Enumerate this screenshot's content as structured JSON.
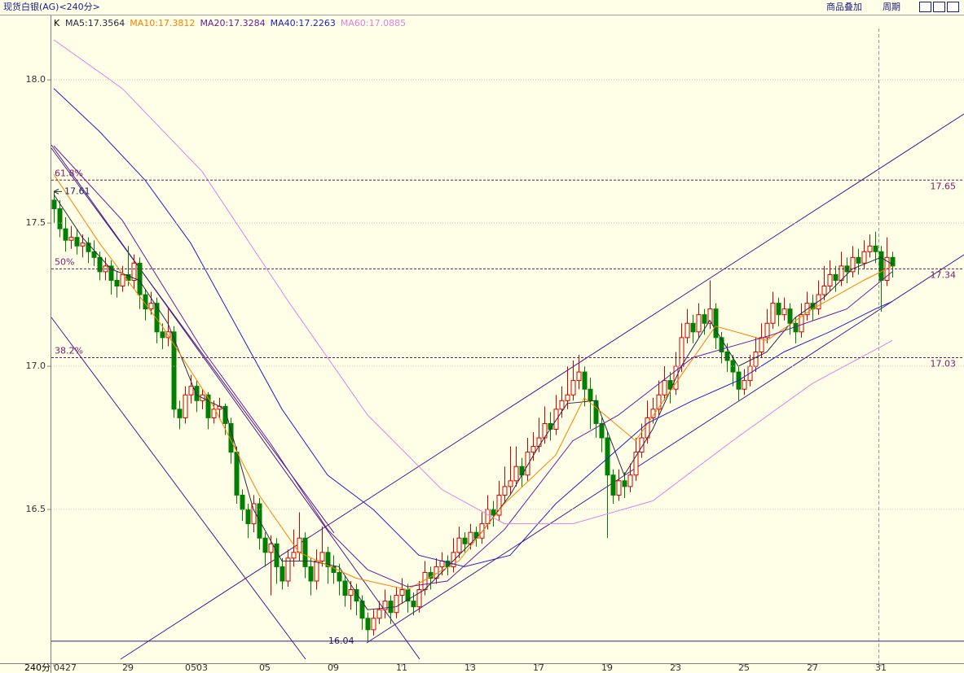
{
  "chart_data": {
    "type": "candlestick",
    "title": "现货白银(AG)<240分>",
    "toolbar": [
      "商品叠加",
      "周期"
    ],
    "legend_prefix": "K",
    "period_label": "240分",
    "up_color": "#d00000",
    "down_color": "#008000",
    "ylim": [
      15.963,
      18.222
    ],
    "yticks": [
      {
        "value": 18,
        "label": "18.0"
      },
      {
        "value": 17.5,
        "label": "17.5"
      },
      {
        "value": 17,
        "label": "17.0"
      },
      {
        "value": 16.5,
        "label": "16.5"
      }
    ],
    "grid": true,
    "xlim": [
      -0.43,
      159.57
    ],
    "xticks": [
      {
        "value": 0,
        "label": "0427"
      },
      {
        "value": 13,
        "label": "29"
      },
      {
        "value": 25,
        "label": "0503"
      },
      {
        "value": 37,
        "label": "05"
      },
      {
        "value": 49,
        "label": "09"
      },
      {
        "value": 61,
        "label": "11"
      },
      {
        "value": 73,
        "label": "13"
      },
      {
        "value": 85,
        "label": "17"
      },
      {
        "value": 97,
        "label": "19"
      },
      {
        "value": 109,
        "label": "23"
      },
      {
        "value": 121,
        "label": "25"
      },
      {
        "value": 133,
        "label": "27"
      },
      {
        "value": 145,
        "label": "31"
      }
    ],
    "levels": [
      {
        "value": 17.65,
        "label": "61.8%"
      },
      {
        "value": 17.34,
        "label": "50%"
      },
      {
        "value": 17.03,
        "label": "38.2%"
      }
    ],
    "high_mark": 17.61,
    "low_mark": 16.04,
    "ohlc": [
      [
        17.58,
        17.61,
        17.5,
        17.55
      ],
      [
        17.55,
        17.58,
        17.45,
        17.48
      ],
      [
        17.48,
        17.52,
        17.4,
        17.44
      ],
      [
        17.44,
        17.49,
        17.41,
        17.45
      ],
      [
        17.45,
        17.48,
        17.39,
        17.42
      ],
      [
        17.42,
        17.46,
        17.38,
        17.43
      ],
      [
        17.43,
        17.45,
        17.36,
        17.4
      ],
      [
        17.4,
        17.44,
        17.35,
        17.38
      ],
      [
        17.38,
        17.4,
        17.3,
        17.33
      ],
      [
        17.33,
        17.38,
        17.3,
        17.35
      ],
      [
        17.35,
        17.37,
        17.25,
        17.3
      ],
      [
        17.3,
        17.33,
        17.24,
        17.28
      ],
      [
        17.28,
        17.35,
        17.26,
        17.32
      ],
      [
        17.32,
        17.42,
        17.28,
        17.3
      ],
      [
        17.3,
        17.39,
        17.27,
        17.36
      ],
      [
        17.36,
        17.38,
        17.2,
        17.25
      ],
      [
        17.25,
        17.27,
        17.16,
        17.2
      ],
      [
        17.2,
        17.26,
        17.18,
        17.22
      ],
      [
        17.22,
        17.24,
        17.08,
        17.12
      ],
      [
        17.12,
        17.15,
        17.06,
        17.1
      ],
      [
        17.1,
        17.2,
        17.07,
        17.12
      ],
      [
        17.12,
        17.14,
        16.82,
        16.85
      ],
      [
        16.85,
        16.88,
        16.78,
        16.82
      ],
      [
        16.82,
        16.93,
        16.8,
        16.9
      ],
      [
        16.9,
        16.97,
        16.87,
        16.93
      ],
      [
        16.93,
        16.95,
        16.84,
        16.88
      ],
      [
        16.88,
        16.92,
        16.85,
        16.9
      ],
      [
        16.9,
        16.91,
        16.78,
        16.82
      ],
      [
        16.82,
        16.88,
        16.8,
        16.85
      ],
      [
        16.85,
        16.89,
        16.82,
        16.86
      ],
      [
        16.86,
        16.87,
        16.76,
        16.8
      ],
      [
        16.8,
        16.82,
        16.66,
        16.7
      ],
      [
        16.7,
        16.72,
        16.52,
        16.55
      ],
      [
        16.55,
        16.57,
        16.46,
        16.5
      ],
      [
        16.5,
        16.52,
        16.4,
        16.45
      ],
      [
        16.45,
        16.55,
        16.42,
        16.52
      ],
      [
        16.52,
        16.54,
        16.36,
        16.4
      ],
      [
        16.4,
        16.42,
        16.3,
        16.35
      ],
      [
        16.35,
        16.41,
        16.2,
        16.38
      ],
      [
        16.38,
        16.4,
        16.24,
        16.3
      ],
      [
        16.3,
        16.33,
        16.22,
        16.25
      ],
      [
        16.25,
        16.36,
        16.23,
        16.33
      ],
      [
        16.33,
        16.43,
        16.3,
        16.35
      ],
      [
        16.35,
        16.49,
        16.32,
        16.4
      ],
      [
        16.4,
        16.42,
        16.26,
        16.3
      ],
      [
        16.3,
        16.33,
        16.2,
        16.25
      ],
      [
        16.25,
        16.36,
        16.22,
        16.32
      ],
      [
        16.32,
        16.44,
        16.3,
        16.35
      ],
      [
        16.35,
        16.37,
        16.24,
        16.3
      ],
      [
        16.3,
        16.34,
        16.24,
        16.28
      ],
      [
        16.28,
        16.31,
        16.2,
        16.25
      ],
      [
        16.25,
        16.27,
        16.16,
        16.2
      ],
      [
        16.2,
        16.25,
        16.15,
        16.22
      ],
      [
        16.22,
        16.24,
        16.13,
        16.18
      ],
      [
        16.18,
        16.2,
        16.08,
        16.12
      ],
      [
        16.12,
        16.14,
        16.04,
        16.08
      ],
      [
        16.08,
        16.15,
        16.06,
        16.12
      ],
      [
        16.12,
        16.18,
        16.1,
        16.15
      ],
      [
        16.15,
        16.22,
        16.12,
        16.18
      ],
      [
        16.18,
        16.2,
        16.1,
        16.14
      ],
      [
        16.14,
        16.23,
        16.12,
        16.2
      ],
      [
        16.2,
        16.26,
        16.17,
        16.22
      ],
      [
        16.22,
        16.24,
        16.14,
        16.18
      ],
      [
        16.18,
        16.21,
        16.13,
        16.16
      ],
      [
        16.16,
        16.25,
        16.14,
        16.22
      ],
      [
        16.22,
        16.32,
        16.2,
        16.28
      ],
      [
        16.28,
        16.3,
        16.22,
        16.26
      ],
      [
        16.26,
        16.33,
        16.24,
        16.3
      ],
      [
        16.3,
        16.35,
        16.27,
        16.32
      ],
      [
        16.32,
        16.34,
        16.27,
        16.3
      ],
      [
        16.3,
        16.4,
        16.28,
        16.35
      ],
      [
        16.35,
        16.44,
        16.33,
        16.4
      ],
      [
        16.4,
        16.42,
        16.35,
        16.38
      ],
      [
        16.38,
        16.45,
        16.36,
        16.42
      ],
      [
        16.42,
        16.44,
        16.37,
        16.4
      ],
      [
        16.4,
        16.49,
        16.38,
        16.45
      ],
      [
        16.45,
        16.55,
        16.43,
        16.5
      ],
      [
        16.5,
        16.53,
        16.44,
        16.48
      ],
      [
        16.48,
        16.6,
        16.46,
        16.55
      ],
      [
        16.55,
        16.65,
        16.52,
        16.58
      ],
      [
        16.58,
        16.72,
        16.55,
        16.6
      ],
      [
        16.6,
        16.72,
        16.58,
        16.65
      ],
      [
        16.65,
        16.68,
        16.58,
        16.62
      ],
      [
        16.62,
        16.75,
        16.6,
        16.7
      ],
      [
        16.7,
        16.77,
        16.67,
        16.72
      ],
      [
        16.72,
        16.82,
        16.7,
        16.75
      ],
      [
        16.75,
        16.86,
        16.73,
        16.8
      ],
      [
        16.8,
        16.84,
        16.74,
        16.78
      ],
      [
        16.78,
        16.9,
        16.76,
        16.85
      ],
      [
        16.85,
        16.93,
        16.82,
        16.88
      ],
      [
        16.88,
        17.0,
        16.85,
        16.9
      ],
      [
        16.9,
        17.02,
        16.88,
        16.95
      ],
      [
        16.95,
        17.04,
        16.92,
        16.98
      ],
      [
        16.98,
        17.0,
        16.86,
        16.92
      ],
      [
        16.92,
        16.96,
        16.78,
        16.88
      ],
      [
        16.88,
        16.9,
        16.75,
        16.8
      ],
      [
        16.8,
        16.82,
        16.7,
        16.75
      ],
      [
        16.75,
        16.77,
        16.4,
        16.62
      ],
      [
        16.62,
        16.64,
        16.52,
        16.55
      ],
      [
        16.55,
        16.64,
        16.53,
        16.6
      ],
      [
        16.6,
        16.63,
        16.54,
        16.58
      ],
      [
        16.58,
        16.66,
        16.56,
        16.62
      ],
      [
        16.62,
        16.75,
        16.6,
        16.7
      ],
      [
        16.7,
        16.8,
        16.68,
        16.75
      ],
      [
        16.75,
        16.88,
        16.73,
        16.82
      ],
      [
        16.82,
        16.89,
        16.8,
        16.85
      ],
      [
        16.85,
        16.95,
        16.83,
        16.9
      ],
      [
        16.9,
        17.0,
        16.88,
        16.95
      ],
      [
        16.95,
        16.98,
        16.87,
        16.92
      ],
      [
        16.92,
        17.05,
        16.9,
        17.0
      ],
      [
        17.0,
        17.15,
        16.98,
        17.1
      ],
      [
        17.1,
        17.2,
        17.08,
        17.15
      ],
      [
        17.15,
        17.18,
        17.08,
        17.12
      ],
      [
        17.12,
        17.22,
        17.1,
        17.18
      ],
      [
        17.18,
        17.2,
        17.11,
        17.15
      ],
      [
        17.15,
        17.3,
        17.13,
        17.2
      ],
      [
        17.2,
        17.22,
        17.06,
        17.1
      ],
      [
        17.1,
        17.12,
        17.01,
        17.05
      ],
      [
        17.05,
        17.08,
        16.98,
        17.02
      ],
      [
        17.02,
        17.04,
        16.93,
        16.98
      ],
      [
        16.98,
        17.0,
        16.88,
        16.92
      ],
      [
        16.92,
        16.99,
        16.9,
        16.95
      ],
      [
        16.95,
        17.04,
        16.93,
        17.0
      ],
      [
        17.0,
        17.1,
        16.98,
        17.05
      ],
      [
        17.05,
        17.15,
        17.03,
        17.1
      ],
      [
        17.1,
        17.2,
        17.08,
        17.15
      ],
      [
        17.15,
        17.26,
        17.13,
        17.22
      ],
      [
        17.22,
        17.24,
        17.14,
        17.18
      ],
      [
        17.18,
        17.24,
        17.16,
        17.2
      ],
      [
        17.2,
        17.22,
        17.11,
        17.15
      ],
      [
        17.15,
        17.17,
        17.08,
        17.12
      ],
      [
        17.12,
        17.22,
        17.1,
        17.18
      ],
      [
        17.18,
        17.26,
        17.16,
        17.22
      ],
      [
        17.22,
        17.25,
        17.16,
        17.2
      ],
      [
        17.2,
        17.3,
        17.18,
        17.25
      ],
      [
        17.25,
        17.35,
        17.23,
        17.28
      ],
      [
        17.28,
        17.37,
        17.26,
        17.32
      ],
      [
        17.32,
        17.35,
        17.26,
        17.3
      ],
      [
        17.3,
        17.4,
        17.28,
        17.35
      ],
      [
        17.35,
        17.38,
        17.29,
        17.33
      ],
      [
        17.33,
        17.42,
        17.31,
        17.38
      ],
      [
        17.38,
        17.41,
        17.32,
        17.36
      ],
      [
        17.36,
        17.44,
        17.34,
        17.4
      ],
      [
        17.4,
        17.46,
        17.38,
        17.42
      ],
      [
        17.42,
        17.47,
        17.36,
        17.4
      ],
      [
        17.4,
        17.42,
        17.19,
        17.3
      ],
      [
        17.3,
        17.45,
        17.28,
        17.38
      ],
      [
        17.38,
        17.4,
        17.31,
        17.35
      ]
    ],
    "series": [
      {
        "name": "MA5:17.3564",
        "color": "#2a2a4a",
        "x": [
          0,
          5,
          10,
          15,
          20,
          25,
          30,
          35,
          40,
          45,
          50,
          55,
          60,
          65,
          70,
          75,
          80,
          85,
          90,
          95,
          100,
          105,
          110,
          115,
          120,
          125,
          130,
          135,
          140,
          145,
          147
        ],
        "values": [
          17.6,
          17.45,
          17.34,
          17.3,
          17.15,
          16.9,
          16.85,
          16.5,
          16.32,
          16.32,
          16.3,
          16.15,
          16.16,
          16.22,
          16.32,
          16.42,
          16.55,
          16.72,
          16.87,
          16.88,
          16.62,
          16.78,
          17.0,
          17.16,
          17.0,
          17.05,
          17.17,
          17.24,
          17.34,
          17.38,
          17.356
        ]
      },
      {
        "name": "MA10:17.3812",
        "color": "#ff8000",
        "x": [
          0,
          8,
          19,
          28,
          36,
          43,
          53,
          62,
          71,
          79,
          88,
          93,
          102,
          109,
          116,
          125,
          133,
          142,
          147
        ],
        "values": [
          17.67,
          17.43,
          17.14,
          16.86,
          16.55,
          16.35,
          16.26,
          16.22,
          16.32,
          16.52,
          16.69,
          16.89,
          16.74,
          16.94,
          17.14,
          17.09,
          17.2,
          17.3,
          17.35
        ]
      },
      {
        "name": "MA20:17.3284",
        "color": "#6a1b9a",
        "x": [
          0,
          12,
          26,
          38,
          48,
          55,
          62,
          69,
          79,
          91,
          99,
          112,
          126,
          139,
          147
        ],
        "values": [
          17.77,
          17.51,
          17.06,
          16.73,
          16.43,
          16.29,
          16.23,
          16.25,
          16.43,
          16.74,
          16.83,
          17.03,
          17.11,
          17.2,
          17.33
        ]
      },
      {
        "name": "MA40:17.2263",
        "color": "#2020c8",
        "x": [
          0,
          8,
          16,
          24,
          32,
          40,
          48,
          56,
          64,
          72,
          80,
          88,
          96,
          104,
          112,
          120,
          128,
          136,
          144,
          147
        ],
        "values": [
          17.97,
          17.82,
          17.65,
          17.43,
          17.14,
          16.85,
          16.62,
          16.5,
          16.34,
          16.3,
          16.34,
          16.52,
          16.66,
          16.8,
          16.88,
          16.95,
          17.05,
          17.12,
          17.2,
          17.226
        ]
      },
      {
        "name": "MA60:17.0885",
        "color": "#e080e8",
        "x": [
          0,
          12,
          26,
          41,
          55,
          68,
          79,
          91,
          105,
          119,
          133,
          147
        ],
        "values": [
          18.14,
          17.97,
          17.68,
          17.23,
          16.83,
          16.57,
          16.45,
          16.45,
          16.53,
          16.74,
          16.94,
          17.09
        ]
      }
    ]
  }
}
